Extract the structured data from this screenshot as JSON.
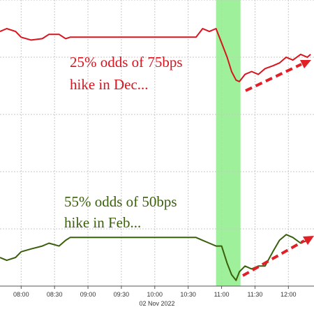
{
  "chart_data": {
    "type": "line",
    "x": [
      461,
      467,
      475,
      480,
      489,
      499,
      505,
      514,
      520,
      524,
      543,
      574,
      605,
      637,
      643,
      649,
      655,
      660,
      665,
      669,
      673,
      676,
      681,
      687,
      693,
      699,
      706,
      712,
      718,
      724,
      731,
      737,
      740
    ],
    "series": [
      {
        "color": "#d8141e",
        "values": [
          89,
          90,
          89,
          87,
          86,
          86.5,
          88,
          88,
          86.5,
          87,
          87,
          87,
          87,
          87,
          90,
          89,
          90,
          85,
          80,
          75,
          72,
          71.5,
          74,
          75,
          74,
          76,
          77,
          78,
          80,
          79,
          81,
          80,
          81
        ]
      },
      {
        "color": "#3a5f0b",
        "values": [
          10,
          9,
          10,
          12,
          13,
          14,
          15,
          14,
          16,
          17,
          17,
          17,
          17,
          17,
          16,
          15,
          14,
          14,
          8,
          4,
          2,
          5,
          7,
          6,
          7,
          7,
          12,
          16,
          18,
          17,
          15,
          16,
          16
        ]
      }
    ],
    "xlim": [
      461,
      743
    ],
    "ylim": [
      0,
      100
    ],
    "xticks": [
      {
        "value": 480,
        "label": "08:00"
      },
      {
        "value": 510,
        "label": "08:30"
      },
      {
        "value": 540,
        "label": "09:00"
      },
      {
        "value": 570,
        "label": "09:30"
      },
      {
        "value": 600,
        "label": "10:00"
      },
      {
        "value": 630,
        "label": "10:30"
      },
      {
        "value": 660,
        "label": "11:00"
      },
      {
        "value": 690,
        "label": "11:30"
      },
      {
        "value": 720,
        "label": "12:00"
      }
    ],
    "yticks": [
      20,
      40,
      60,
      80,
      100
    ],
    "grid": true,
    "x_label": "02 Nov 2022",
    "highlight": [
      655,
      677
    ],
    "highlight_color": "#9ef09a",
    "annotations": [
      {
        "lines": [
          "25% odds of 75bps",
          "hike in Dec..."
        ],
        "color": "#d8141e"
      },
      {
        "lines": [
          "55% odds of 50bps",
          "hike in Feb..."
        ],
        "color": "#3a5f0b"
      }
    ]
  }
}
